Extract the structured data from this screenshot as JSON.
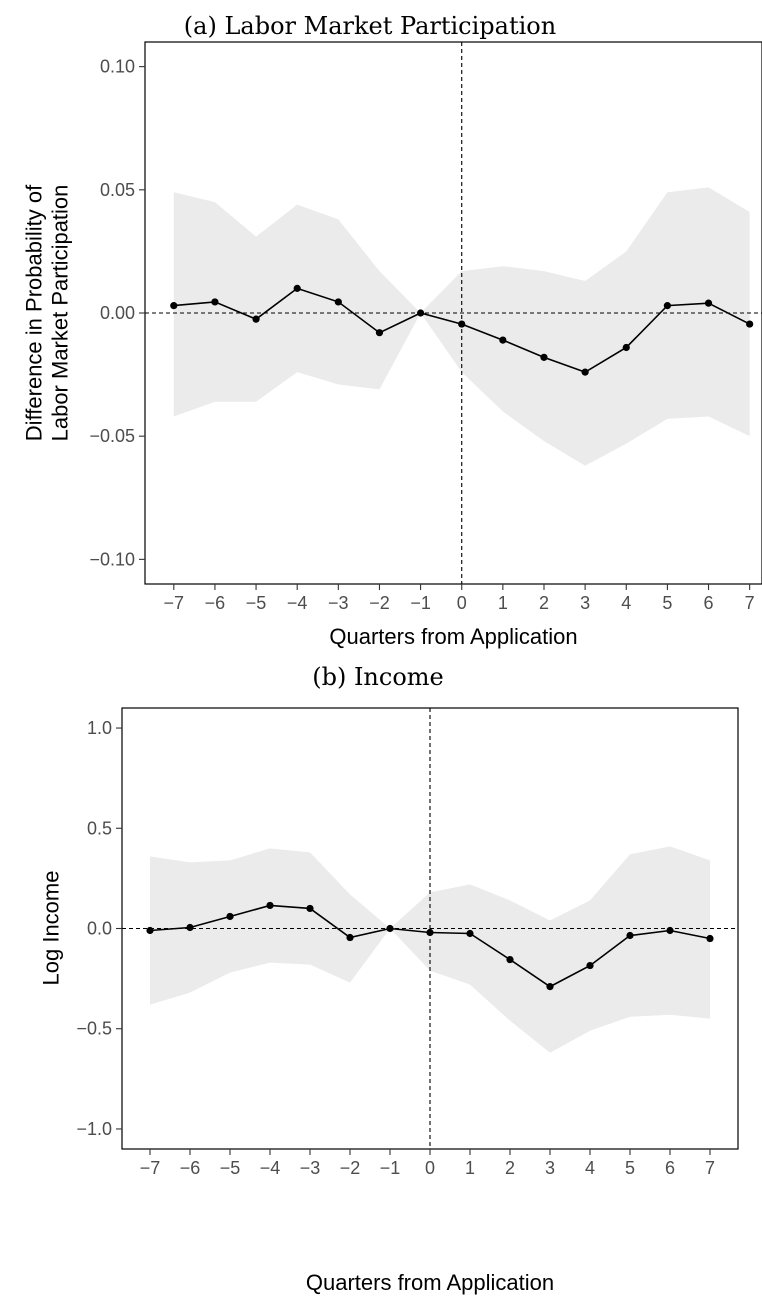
{
  "chart_data": [
    {
      "type": "line",
      "title": "(a) Labor Market Participation",
      "xlabel": "Quarters from Application",
      "ylabel_lines": [
        "Difference in Probability of",
        "Labor Market Participation"
      ],
      "x": [
        -7,
        -6,
        -5,
        -4,
        -3,
        -2,
        -1,
        0,
        1,
        2,
        3,
        4,
        5,
        6,
        7
      ],
      "x_ticks": [
        "−7",
        "−6",
        "−5",
        "−4",
        "−3",
        "−2",
        "−1",
        "0",
        "1",
        "2",
        "3",
        "4",
        "5",
        "6",
        "7"
      ],
      "y_ticks": [
        {
          "value": 0.1,
          "label": "0.10"
        },
        {
          "value": 0.05,
          "label": "0.05"
        },
        {
          "value": 0.0,
          "label": "0.00"
        },
        {
          "value": -0.05,
          "label": "−0.05"
        },
        {
          "value": -0.1,
          "label": "−0.10"
        }
      ],
      "xlim": [
        -7.7,
        7.3
      ],
      "ylim": [
        -0.11,
        0.11
      ],
      "series": [
        {
          "values": [
            0.003,
            0.0045,
            -0.0025,
            0.01,
            0.0045,
            -0.008,
            0.0,
            -0.0045,
            -0.011,
            -0.018,
            -0.024,
            -0.014,
            0.003,
            0.004,
            -0.0045
          ],
          "ci_upper": [
            0.049,
            0.045,
            0.031,
            0.044,
            0.038,
            0.017,
            0.0,
            0.017,
            0.019,
            0.017,
            0.013,
            0.025,
            0.049,
            0.051,
            0.041
          ],
          "ci_lower": [
            -0.042,
            -0.036,
            -0.036,
            -0.024,
            -0.029,
            -0.031,
            0.0,
            -0.024,
            -0.04,
            -0.052,
            -0.062,
            -0.053,
            -0.043,
            -0.042,
            -0.05
          ]
        }
      ],
      "reference_lines": {
        "x": 0,
        "y": 0
      },
      "grid": false,
      "colors": {
        "line": "#000000",
        "ribbon": "#ebebeb",
        "frame": "#000000"
      }
    },
    {
      "type": "line",
      "title": "(b) Income",
      "xlabel": "Quarters from Application",
      "ylabel_lines": [
        "Log Income"
      ],
      "x": [
        -7,
        -6,
        -5,
        -4,
        -3,
        -2,
        -1,
        0,
        1,
        2,
        3,
        4,
        5,
        6,
        7
      ],
      "x_ticks": [
        "−7",
        "−6",
        "−5",
        "−4",
        "−3",
        "−2",
        "−1",
        "0",
        "1",
        "2",
        "3",
        "4",
        "5",
        "6",
        "7"
      ],
      "y_ticks": [
        {
          "value": 1.0,
          "label": "1.0"
        },
        {
          "value": 0.5,
          "label": "0.5"
        },
        {
          "value": 0.0,
          "label": "0.0"
        },
        {
          "value": -0.5,
          "label": "−0.5"
        },
        {
          "value": -1.0,
          "label": "−1.0"
        }
      ],
      "xlim": [
        -7.7,
        7.7
      ],
      "ylim": [
        -1.1,
        1.1
      ],
      "series": [
        {
          "values": [
            -0.01,
            0.005,
            0.06,
            0.115,
            0.1,
            -0.045,
            0.0,
            -0.02,
            -0.025,
            -0.155,
            -0.29,
            -0.185,
            -0.035,
            -0.01,
            -0.05
          ],
          "ci_upper": [
            0.36,
            0.33,
            0.34,
            0.4,
            0.38,
            0.17,
            0.0,
            0.18,
            0.22,
            0.14,
            0.04,
            0.14,
            0.37,
            0.41,
            0.34
          ],
          "ci_lower": [
            -0.38,
            -0.32,
            -0.22,
            -0.17,
            -0.18,
            -0.27,
            0.0,
            -0.21,
            -0.28,
            -0.46,
            -0.62,
            -0.51,
            -0.44,
            -0.43,
            -0.45
          ]
        }
      ],
      "reference_lines": {
        "x": 0,
        "y": 0
      },
      "grid": false,
      "colors": {
        "line": "#000000",
        "ribbon": "#ebebeb",
        "frame": "#000000"
      }
    }
  ]
}
